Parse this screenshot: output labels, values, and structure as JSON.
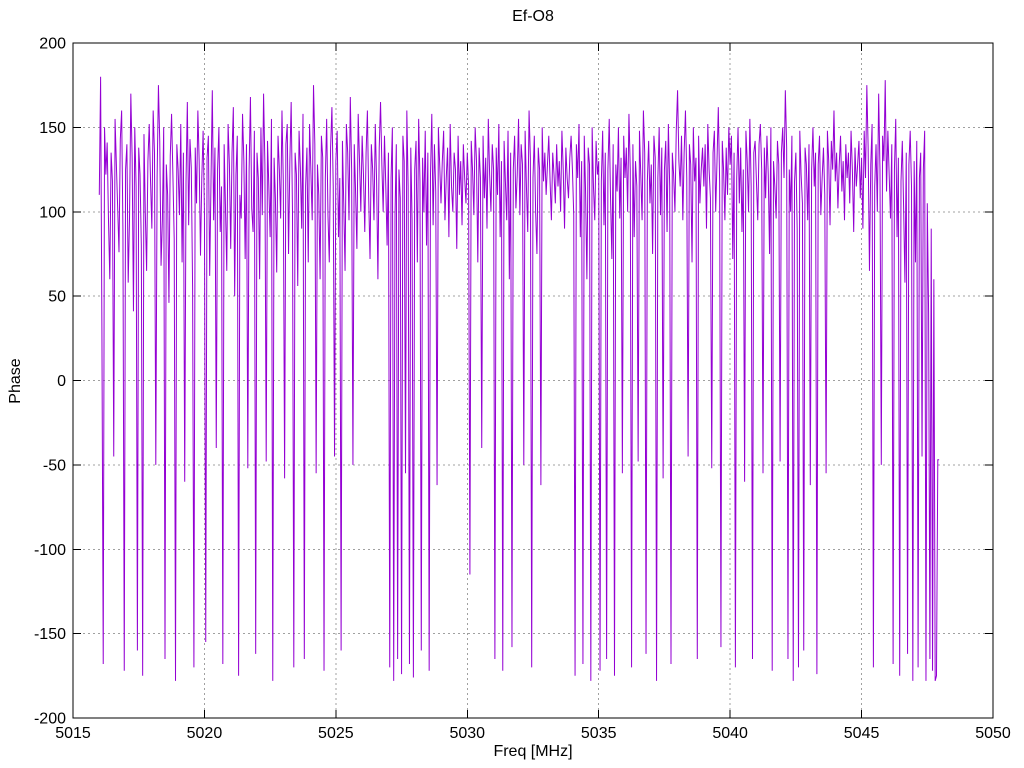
{
  "chart": {
    "title": "Ef-O8",
    "xlabel": "Freq [MHz]",
    "ylabel": "Phase"
  },
  "chart_data": {
    "type": "line",
    "title": "Ef-O8",
    "xlabel": "Freq [MHz]",
    "ylabel": "Phase",
    "xlim": [
      5015,
      5050
    ],
    "ylim": [
      -200,
      200
    ],
    "xticks": [
      5015,
      5020,
      5025,
      5030,
      5035,
      5040,
      5045,
      5050
    ],
    "yticks": [
      -200,
      -150,
      -100,
      -50,
      0,
      50,
      100,
      150,
      200
    ],
    "grid": true,
    "legend": "none",
    "line_color": "#9400d3",
    "grid_color": "#a0a0a0",
    "axis_color": "#000000",
    "x_start": 5016.0,
    "x_step": 0.05,
    "values": [
      110,
      180,
      30,
      -168,
      150,
      122,
      141,
      95,
      60,
      135,
      118,
      -45,
      155,
      128,
      102,
      76,
      143,
      160,
      88,
      -172,
      125,
      140,
      58,
      96,
      170,
      132,
      41,
      150,
      115,
      -160,
      138,
      122,
      80,
      -175,
      146,
      100,
      65,
      130,
      152,
      118,
      90,
      160,
      135,
      -50,
      120,
      175,
      142,
      68,
      95,
      150,
      -165,
      128,
      110,
      46,
      133,
      158,
      122,
      84,
      -178,
      140,
      125,
      98,
      152,
      70,
      135,
      -60,
      118,
      165,
      92,
      143,
      126,
      55,
      -170,
      138,
      105,
      160,
      130,
      74,
      120,
      148,
      100,
      -155,
      132,
      145,
      62,
      118,
      172,
      95,
      138,
      -40,
      125,
      150,
      88,
      115,
      -168,
      140,
      103,
      65,
      152,
      128,
      78,
      135,
      162,
      50,
      122,
      145,
      -175,
      110,
      96,
      158,
      130,
      72,
      140,
      -52,
      125,
      168,
      102,
      88,
      148,
      -162,
      135,
      120,
      60,
      150,
      98,
      170,
      128,
      -48,
      142,
      115,
      85,
      155,
      -178,
      132,
      108,
      64,
      145,
      125,
      96,
      160,
      118,
      -58,
      140,
      152,
      75,
      130,
      165,
      100,
      -170,
      135,
      122,
      56,
      148,
      126,
      90,
      158,
      -165,
      115,
      138,
      70,
      152,
      124,
      95,
      175,
      140,
      -55,
      128,
      110,
      60,
      145,
      132,
      -172,
      120,
      155,
      98,
      70,
      138,
      162,
      115,
      -45,
      130,
      148,
      85,
      120,
      -160,
      142,
      105,
      65,
      152,
      135,
      95,
      168,
      125,
      -50,
      140,
      112,
      78,
      158,
      130,
      100,
      145,
      122,
      88,
      135,
      160,
      108,
      72,
      140,
      125,
      95,
      152,
      118,
      60,
      138,
      165,
      128,
      100,
      145,
      115,
      80,
      135,
      -170,
      120,
      150,
      -178,
      98,
      140,
      -165,
      125,
      108,
      -174,
      145,
      130,
      -55,
      160,
      115,
      -168,
      138,
      95,
      -176,
      125,
      142,
      70,
      155,
      118,
      -160,
      132,
      100,
      148,
      80,
      135,
      -172,
      122,
      158,
      92,
      140,
      112,
      -62,
      150,
      128,
      105,
      130,
      148,
      95,
      120,
      138,
      85,
      152,
      115,
      100,
      135,
      125,
      78,
      145,
      110,
      130,
      92,
      140,
      120,
      105,
      135,
      115,
      -115,
      142,
      125,
      98,
      150,
      130,
      70,
      138,
      120,
      -40,
      145,
      108,
      132,
      90,
      155,
      122,
      100,
      140,
      125,
      -165,
      138,
      110,
      152,
      85,
      130,
      -172,
      142,
      118,
      95,
      148,
      60,
      135,
      -158,
      125,
      145,
      102,
      122,
      155,
      98,
      140,
      128,
      -50,
      148,
      115,
      88,
      160,
      132,
      -170,
      120,
      145,
      100,
      75,
      138,
      125,
      -62,
      150,
      118,
      135,
      110,
      128,
      145,
      118,
      95,
      135,
      122,
      105,
      140,
      115,
      130,
      100,
      148,
      125,
      90,
      138,
      120,
      108,
      132,
      145,
      125,
      98,
      -175,
      140,
      120,
      152,
      85,
      130,
      -168,
      145,
      112,
      60,
      138,
      128,
      -178,
      150,
      115,
      95,
      142,
      122,
      130,
      -172,
      118,
      148,
      92,
      135,
      -165,
      125,
      155,
      108,
      72,
      140,
      -175,
      128,
      112,
      150,
      96,
      132,
      -55,
      145,
      120,
      138,
      100,
      158,
      125,
      -170,
      140,
      85,
      130,
      115,
      -48,
      148,
      122,
      95,
      160,
      135,
      -162,
      118,
      142,
      105,
      128,
      75,
      145,
      132,
      -178,
      120,
      150,
      98,
      138,
      -58,
      125,
      142,
      88,
      152,
      115,
      -168,
      135,
      122,
      100,
      148,
      172,
      130,
      115,
      145,
      95,
      135,
      160,
      120,
      -45,
      140,
      128,
      70,
      150,
      118,
      132,
      -165,
      145,
      105,
      125,
      138,
      115,
      140,
      90,
      152,
      125,
      108,
      -52,
      135,
      148,
      100,
      130,
      162,
      118,
      -158,
      142,
      125,
      95,
      138,
      110,
      150,
      128,
      145,
      72,
      135,
      -170,
      120,
      150,
      105,
      138,
      88,
      125,
      -60,
      148,
      130,
      100,
      155,
      115,
      -165,
      135,
      142,
      118,
      95,
      140,
      152,
      125,
      -55,
      138,
      108,
      145,
      122,
      75,
      150,
      -172,
      130,
      115,
      96,
      142,
      128,
      -48,
      135,
      150,
      120,
      172,
      138,
      -165,
      125,
      100,
      145,
      -178,
      118,
      135,
      90,
      -170,
      148,
      122,
      105,
      -160,
      138,
      128,
      95,
      140,
      -62,
      125,
      150,
      115,
      135,
      -174,
      128,
      145,
      98,
      120,
      138,
      110,
      -55,
      148,
      130,
      92,
      142,
      125,
      160,
      118,
      135,
      102,
      128,
      145,
      112,
      130,
      95,
      140,
      120,
      135,
      105,
      148,
      125,
      88,
      138,
      115,
      128,
      142,
      108,
      132,
      90,
      148,
      120,
      175,
      138,
      65,
      128,
      152,
      -170,
      115,
      140,
      100,
      170,
      125,
      -50,
      145,
      130,
      178,
      112,
      148,
      122,
      96,
      140,
      -168,
      125,
      155,
      85,
      132,
      -175,
      118,
      142,
      102,
      58,
      135,
      -162,
      128,
      148,
      115,
      -178,
      130,
      70,
      142,
      -170,
      120,
      135,
      -45,
      125,
      148,
      -178,
      105,
      40,
      -165,
      90,
      -172,
      60,
      -178,
      -175,
      -47,
      -47
    ]
  }
}
